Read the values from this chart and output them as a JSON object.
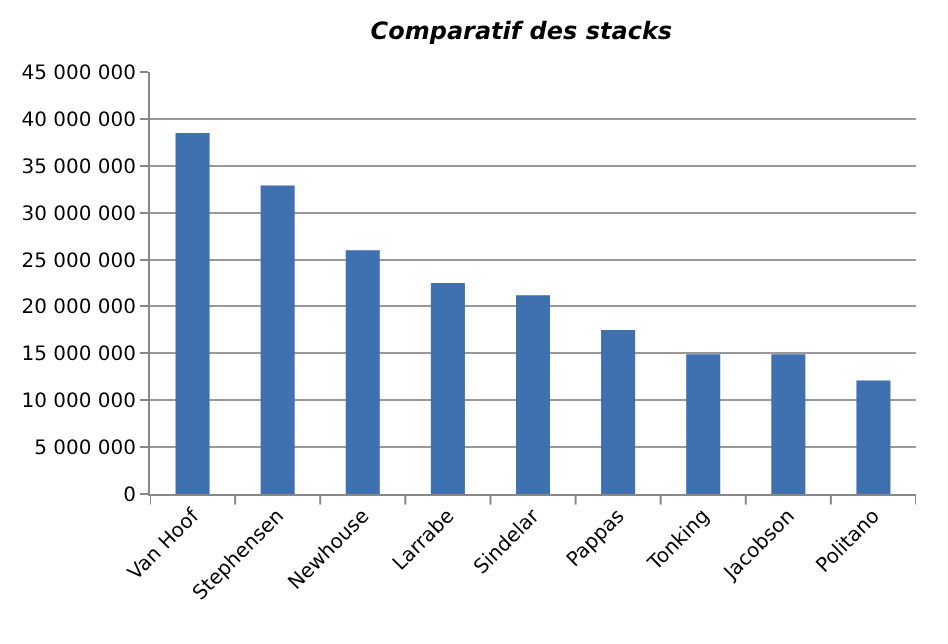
{
  "chart_data": {
    "type": "bar",
    "title": "Comparatif des stacks",
    "categories": [
      "Van Hoof",
      "Stephensen",
      "Newhouse",
      "Larrabe",
      "Sindelar",
      "Pappas",
      "Tonking",
      "Jacobson",
      "Politano"
    ],
    "values": [
      38500000,
      32900000,
      26000000,
      22500000,
      21200000,
      17500000,
      14900000,
      14900000,
      12100000
    ],
    "color": "#3f70b0",
    "ylim": [
      0,
      45000000
    ],
    "yticks": [
      {
        "value": 0,
        "label": "0"
      },
      {
        "value": 5000000,
        "label": "5 000 000"
      },
      {
        "value": 10000000,
        "label": "10 000 000"
      },
      {
        "value": 15000000,
        "label": "15 000 000"
      },
      {
        "value": 20000000,
        "label": "20 000 000"
      },
      {
        "value": 25000000,
        "label": "25 000 000"
      },
      {
        "value": 30000000,
        "label": "30 000 000"
      },
      {
        "value": 35000000,
        "label": "35 000 000"
      },
      {
        "value": 40000000,
        "label": "40 000 000"
      },
      {
        "value": 45000000,
        "label": "45 000 000"
      }
    ],
    "grid": "y",
    "legend": false
  }
}
